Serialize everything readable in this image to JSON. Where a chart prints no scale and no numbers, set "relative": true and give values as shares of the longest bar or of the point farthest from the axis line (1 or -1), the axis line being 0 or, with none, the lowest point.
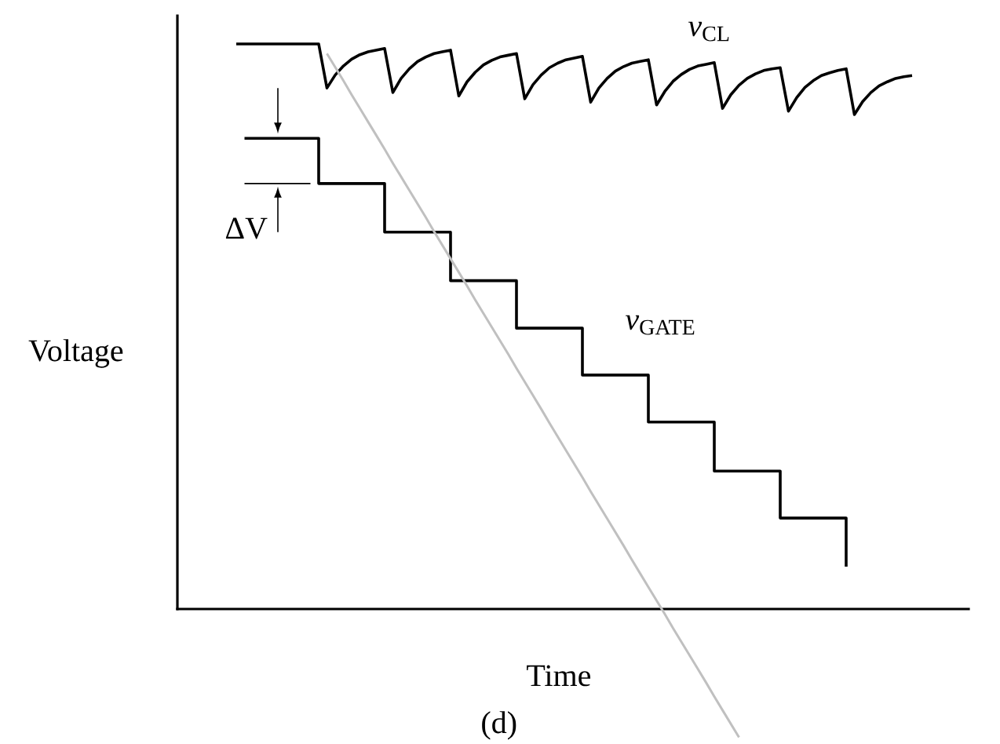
{
  "chart_data": {
    "type": "line",
    "relative": true,
    "xlabel": "Time",
    "ylabel": "Voltage",
    "categories": [
      null,
      null,
      null,
      null,
      null,
      null,
      null,
      null,
      null,
      null,
      null,
      null,
      null,
      null,
      null,
      null,
      null,
      null,
      null,
      null,
      null,
      null,
      null,
      null,
      null,
      null,
      null,
      null,
      null,
      null,
      null,
      null,
      null,
      null,
      null,
      null,
      null,
      null,
      null,
      null,
      null,
      null,
      null,
      null,
      null,
      null,
      null,
      null,
      null,
      null,
      null,
      null,
      null,
      null,
      null,
      null,
      null,
      null,
      null,
      null,
      null,
      null,
      null,
      null,
      null,
      null,
      null,
      null,
      null,
      null,
      null,
      null,
      null,
      null,
      null,
      null,
      null,
      null,
      null,
      null,
      null,
      null,
      null
    ],
    "series": [
      {
        "name": "*v*$_{CL}$",
        "color": "#000000",
        "values": [
          1,
          1,
          1,
          1,
          1,
          1,
          1,
          1,
          1,
          1,
          1,
          0.922,
          0.945,
          0.961,
          0.973,
          0.981,
          0.986,
          0.989,
          0.992,
          0.914,
          0.939,
          0.956,
          0.969,
          0.977,
          0.983,
          0.986,
          0.989,
          0.908,
          0.933,
          0.95,
          0.963,
          0.971,
          0.977,
          0.98,
          0.983,
          0.903,
          0.928,
          0.945,
          0.958,
          0.966,
          0.972,
          0.975,
          0.978,
          0.897,
          0.922,
          0.939,
          0.952,
          0.96,
          0.966,
          0.969,
          0.972,
          0.892,
          0.916,
          0.934,
          0.946,
          0.955,
          0.961,
          0.964,
          0.967,
          0.886,
          0.91,
          0.927,
          0.939,
          0.947,
          0.953,
          0.956,
          0.958,
          0.881,
          0.905,
          0.923,
          0.935,
          0.944,
          0.949,
          0.953,
          0.956,
          0.875,
          0.898,
          0.914,
          0.926,
          0.933,
          0.939,
          0.942,
          0.944
        ]
      },
      {
        "name": "*v*$_{GATE}$",
        "type": "step",
        "color": "#000000",
        "values": [
          null,
          0.833,
          0.833,
          0.833,
          0.833,
          0.833,
          0.833,
          0.833,
          0.833,
          0.833,
          0.753,
          0.753,
          0.753,
          0.753,
          0.753,
          0.753,
          0.753,
          0.753,
          0.667,
          0.667,
          0.667,
          0.667,
          0.667,
          0.667,
          0.667,
          0.667,
          0.581,
          0.581,
          0.581,
          0.581,
          0.581,
          0.581,
          0.581,
          0.581,
          0.497,
          0.497,
          0.497,
          0.497,
          0.497,
          0.497,
          0.497,
          0.497,
          0.414,
          0.414,
          0.414,
          0.414,
          0.414,
          0.414,
          0.414,
          0.414,
          0.331,
          0.331,
          0.331,
          0.331,
          0.331,
          0.331,
          0.331,
          0.331,
          0.244,
          0.244,
          0.244,
          0.244,
          0.244,
          0.244,
          0.244,
          0.244,
          0.161,
          0.161,
          0.161,
          0.161,
          0.161,
          0.161,
          0.161,
          0.161,
          0.075,
          null,
          null,
          null,
          null,
          null,
          null,
          null,
          null
        ]
      },
      {
        "color": "#c0c0c0",
        "values": [
          null,
          null,
          null,
          null,
          null,
          null,
          null,
          null,
          null,
          null,
          null,
          0.983,
          0.959,
          0.935,
          0.91,
          0.886,
          0.862,
          0.838,
          0.814,
          0.789,
          0.765,
          0.741,
          0.717,
          0.693,
          0.668,
          0.644,
          0.62,
          0.596,
          0.572,
          0.547,
          0.523,
          0.499,
          0.475,
          0.451,
          0.426,
          0.402,
          0.378,
          0.354,
          0.329,
          0.305,
          0.281,
          0.257,
          0.233,
          0.208,
          0.184,
          0.16,
          0.136,
          0.112,
          0.087,
          0.063,
          0.039,
          0.015,
          -0.009,
          -0.034,
          -0.058,
          -0.082,
          -0.106,
          -0.13,
          -0.155,
          -0.179,
          -0.203,
          -0.227,
          null,
          null,
          null,
          null,
          null,
          null,
          null,
          null,
          null,
          null,
          null,
          null,
          null,
          null,
          null,
          null,
          null,
          null,
          null,
          null,
          null
        ]
      }
    ],
    "annotations": [
      "ΔV",
      "(d)"
    ]
  }
}
